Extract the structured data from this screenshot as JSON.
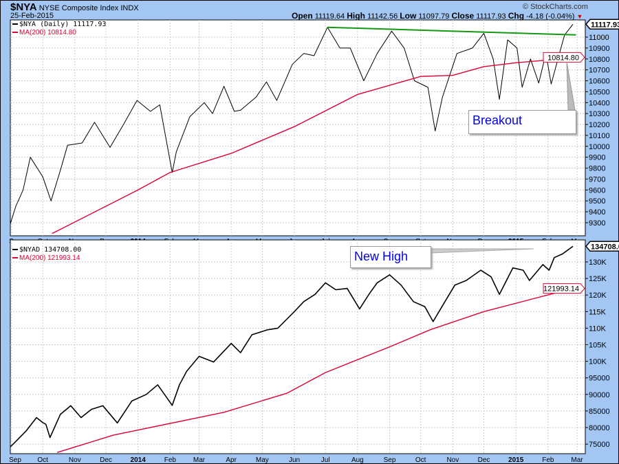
{
  "header": {
    "symbol": "$NYA",
    "name": "NYSE Composite Index",
    "exchange": "INDX",
    "date": "25-Feb-2015",
    "copyright": "© StockCharts.com",
    "ohlc": {
      "open_label": "Open",
      "open": "11119.64",
      "high_label": "High",
      "high": "11142.56",
      "low_label": "Low",
      "low": "11097.79",
      "close_label": "Close",
      "close": "11117.93",
      "chg_label": "Chg",
      "chg": "-4.18 (-0.04%)",
      "chg_icon": "down-triangle-icon"
    }
  },
  "colors": {
    "background": "#a3c6f3",
    "price": "#000000",
    "ma": "#dd0033",
    "trendline": "#119911",
    "callout_text": "#0000ee"
  },
  "annotations": {
    "top": "Breakout",
    "bottom": "New High"
  },
  "chart_data": [
    {
      "type": "line",
      "panel": "top",
      "legend": [
        {
          "label": "$NYA (Daily) 11117.93",
          "color": "#000000"
        },
        {
          "label": "MA(200) 10814.80",
          "color": "#dd0033"
        }
      ],
      "last_value_tags": [
        {
          "label": "11117.93",
          "value": 11117.93,
          "color": "#000000"
        },
        {
          "label": "10814.80",
          "value": 10814.8,
          "color": "#dd0033"
        }
      ],
      "ylim": [
        9200,
        11180
      ],
      "yticks": [
        9300,
        9400,
        9500,
        9600,
        9700,
        9800,
        9900,
        10000,
        10100,
        10200,
        10300,
        10400,
        10500,
        10600,
        10700,
        10800,
        10900,
        11000
      ],
      "grid": true,
      "series": [
        {
          "name": "$NYA (Daily)",
          "color": "#000000",
          "points": [
            [
              "2013-08-30",
              9270
            ],
            [
              "2013-09-05",
              9450
            ],
            [
              "2013-09-12",
              9600
            ],
            [
              "2013-09-19",
              9900
            ],
            [
              "2013-10-01",
              9720
            ],
            [
              "2013-10-09",
              9500
            ],
            [
              "2013-10-18",
              9780
            ],
            [
              "2013-10-25",
              10010
            ],
            [
              "2013-11-08",
              10030
            ],
            [
              "2013-11-20",
              10220
            ],
            [
              "2013-12-05",
              9990
            ],
            [
              "2013-12-18",
              10200
            ],
            [
              "2013-12-31",
              10420
            ],
            [
              "2014-01-13",
              10320
            ],
            [
              "2014-01-22",
              10380
            ],
            [
              "2014-02-03",
              9760
            ],
            [
              "2014-02-07",
              9950
            ],
            [
              "2014-02-20",
              10270
            ],
            [
              "2014-03-06",
              10400
            ],
            [
              "2014-03-14",
              10300
            ],
            [
              "2014-03-25",
              10550
            ],
            [
              "2014-04-04",
              10320
            ],
            [
              "2014-04-10",
              10330
            ],
            [
              "2014-04-25",
              10450
            ],
            [
              "2014-05-05",
              10590
            ],
            [
              "2014-05-15",
              10420
            ],
            [
              "2014-05-30",
              10750
            ],
            [
              "2014-06-10",
              10850
            ],
            [
              "2014-06-20",
              10830
            ],
            [
              "2014-07-03",
              11090
            ],
            [
              "2014-07-15",
              10900
            ],
            [
              "2014-07-25",
              10900
            ],
            [
              "2014-08-07",
              10600
            ],
            [
              "2014-08-20",
              10850
            ],
            [
              "2014-09-03",
              11055
            ],
            [
              "2014-09-15",
              10900
            ],
            [
              "2014-09-25",
              10600
            ],
            [
              "2014-10-08",
              10540
            ],
            [
              "2014-10-15",
              10140
            ],
            [
              "2014-10-22",
              10450
            ],
            [
              "2014-11-05",
              10850
            ],
            [
              "2014-11-20",
              10900
            ],
            [
              "2014-12-01",
              11035
            ],
            [
              "2014-12-10",
              10800
            ],
            [
              "2014-12-16",
              10430
            ],
            [
              "2014-12-24",
              10975
            ],
            [
              "2015-01-02",
              10900
            ],
            [
              "2015-01-07",
              10540
            ],
            [
              "2015-01-15",
              10800
            ],
            [
              "2015-01-23",
              10580
            ],
            [
              "2015-01-30",
              10850
            ],
            [
              "2015-02-04",
              10570
            ],
            [
              "2015-02-12",
              10850
            ],
            [
              "2015-02-17",
              11020
            ],
            [
              "2015-02-25",
              11117.93
            ]
          ]
        },
        {
          "name": "MA(200)",
          "color": "#dd0033",
          "points": [
            [
              "2013-10-10",
              9200
            ],
            [
              "2014-01-01",
              9600
            ],
            [
              "2014-02-01",
              9760
            ],
            [
              "2014-04-01",
              9935
            ],
            [
              "2014-06-01",
              10180
            ],
            [
              "2014-08-01",
              10475
            ],
            [
              "2014-10-01",
              10640
            ],
            [
              "2014-11-01",
              10650
            ],
            [
              "2014-12-01",
              10730
            ],
            [
              "2015-01-01",
              10765
            ],
            [
              "2015-02-01",
              10790
            ],
            [
              "2015-02-25",
              10814.8
            ]
          ]
        },
        {
          "color": "#119911",
          "points": [
            [
              "2014-07-03",
              11090
            ],
            [
              "2015-02-28",
              11020
            ]
          ]
        }
      ]
    },
    {
      "type": "line",
      "panel": "bottom",
      "legend": [
        {
          "label": "$NYAD 134708.00",
          "color": "#000000"
        },
        {
          "label": "MA(200) 121993.14",
          "color": "#dd0033"
        }
      ],
      "last_value_tags": [
        {
          "label": "134708.00",
          "value": 134708,
          "color": "#000000"
        },
        {
          "label": "121993.14",
          "value": 121993.14,
          "color": "#dd0033"
        }
      ],
      "ylim": [
        72000,
        136000
      ],
      "yticks": [
        {
          "v": 75000,
          "label": "75000"
        },
        {
          "v": 80000,
          "label": "80000"
        },
        {
          "v": 85000,
          "label": "85000"
        },
        {
          "v": 90000,
          "label": "90000"
        },
        {
          "v": 95000,
          "label": "95000"
        },
        {
          "v": 100000,
          "label": "100K"
        },
        {
          "v": 105000,
          "label": "105K"
        },
        {
          "v": 110000,
          "label": "110K"
        },
        {
          "v": 115000,
          "label": "115K"
        },
        {
          "v": 120000,
          "label": "120K"
        },
        {
          "v": 125000,
          "label": "125K"
        },
        {
          "v": 130000,
          "label": "130K"
        }
      ],
      "grid": true,
      "series": [
        {
          "name": "$NYAD",
          "color": "#000000",
          "points": [
            [
              "2013-08-30",
              74000
            ],
            [
              "2013-09-04",
              75500
            ],
            [
              "2013-09-15",
              79000
            ],
            [
              "2013-09-25",
              83000
            ],
            [
              "2013-10-01",
              81500
            ],
            [
              "2013-10-04",
              81000
            ],
            [
              "2013-10-08",
              77000
            ],
            [
              "2013-10-18",
              84000
            ],
            [
              "2013-10-28",
              86600
            ],
            [
              "2013-11-07",
              83000
            ],
            [
              "2013-11-17",
              85500
            ],
            [
              "2013-11-28",
              86600
            ],
            [
              "2013-12-12",
              81400
            ],
            [
              "2013-12-26",
              88000
            ],
            [
              "2014-01-09",
              90000
            ],
            [
              "2014-01-20",
              92900
            ],
            [
              "2014-02-03",
              86700
            ],
            [
              "2014-02-10",
              92900
            ],
            [
              "2014-02-17",
              97000
            ],
            [
              "2014-03-01",
              101500
            ],
            [
              "2014-03-15",
              99800
            ],
            [
              "2014-04-01",
              105400
            ],
            [
              "2014-04-10",
              102600
            ],
            [
              "2014-04-21",
              108000
            ],
            [
              "2014-05-06",
              109500
            ],
            [
              "2014-05-16",
              110000
            ],
            [
              "2014-06-01",
              115000
            ],
            [
              "2014-06-10",
              118000
            ],
            [
              "2014-06-21",
              120200
            ],
            [
              "2014-07-01",
              123700
            ],
            [
              "2014-07-11",
              121600
            ],
            [
              "2014-07-22",
              122000
            ],
            [
              "2014-08-03",
              115800
            ],
            [
              "2014-08-12",
              120200
            ],
            [
              "2014-08-20",
              123700
            ],
            [
              "2014-09-01",
              126100
            ],
            [
              "2014-09-12",
              123000
            ],
            [
              "2014-09-24",
              118000
            ],
            [
              "2014-10-05",
              116500
            ],
            [
              "2014-10-13",
              112000
            ],
            [
              "2014-10-24",
              117800
            ],
            [
              "2014-11-03",
              123000
            ],
            [
              "2014-11-14",
              124400
            ],
            [
              "2014-11-28",
              127500
            ],
            [
              "2014-12-08",
              125500
            ],
            [
              "2014-12-16",
              120200
            ],
            [
              "2014-12-29",
              128200
            ],
            [
              "2015-01-08",
              127500
            ],
            [
              "2015-01-14",
              124400
            ],
            [
              "2015-01-27",
              129200
            ],
            [
              "2015-02-02",
              127500
            ],
            [
              "2015-02-07",
              131300
            ],
            [
              "2015-02-15",
              132400
            ],
            [
              "2015-02-25",
              134708
            ]
          ]
        },
        {
          "name": "MA(200)",
          "color": "#dd0033",
          "points": [
            [
              "2013-10-15",
              72500
            ],
            [
              "2013-12-08",
              77700
            ],
            [
              "2014-03-25",
              84600
            ],
            [
              "2014-05-25",
              90400
            ],
            [
              "2014-07-01",
              96600
            ],
            [
              "2014-09-03",
              104600
            ],
            [
              "2014-10-10",
              109500
            ],
            [
              "2014-12-01",
              115000
            ],
            [
              "2015-02-25",
              121993.14
            ]
          ]
        }
      ]
    }
  ],
  "x_axis": {
    "ticks": [
      {
        "date": "2013-09-01",
        "label": "Sep"
      },
      {
        "date": "2013-10-01",
        "label": "Oct"
      },
      {
        "date": "2013-11-01",
        "label": "Nov"
      },
      {
        "date": "2013-12-01",
        "label": "Dec"
      },
      {
        "date": "2014-01-01",
        "label": "2014",
        "bold": true
      },
      {
        "date": "2014-02-01",
        "label": "Feb"
      },
      {
        "date": "2014-03-01",
        "label": "Mar"
      },
      {
        "date": "2014-04-01",
        "label": "Apr"
      },
      {
        "date": "2014-05-01",
        "label": "May"
      },
      {
        "date": "2014-06-01",
        "label": "Jun"
      },
      {
        "date": "2014-07-01",
        "label": "Jul"
      },
      {
        "date": "2014-08-01",
        "label": "Aug"
      },
      {
        "date": "2014-09-01",
        "label": "Sep"
      },
      {
        "date": "2014-10-01",
        "label": "Oct"
      },
      {
        "date": "2014-11-01",
        "label": "Nov"
      },
      {
        "date": "2014-12-01",
        "label": "Dec"
      },
      {
        "date": "2015-01-01",
        "label": "2015",
        "bold": true
      },
      {
        "date": "2015-02-01",
        "label": "Feb"
      },
      {
        "date": "2015-03-01",
        "label": "Mar"
      }
    ]
  }
}
